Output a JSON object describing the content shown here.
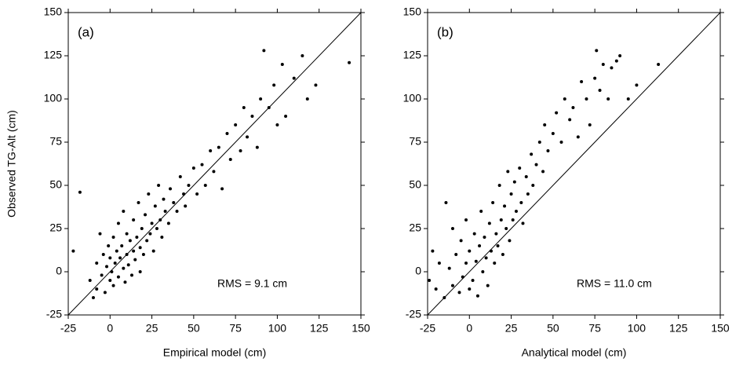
{
  "chart_data": [
    {
      "type": "scatter",
      "title": "(a)",
      "annotation": "RMS = 9.1 cm",
      "x_label": "Empirical model (cm)",
      "y_label": "Observed TG-Alt (cm)",
      "color": "#000000",
      "xlim": [
        -25,
        150
      ],
      "ylim": [
        -25,
        150
      ],
      "xticks": [
        -25,
        0,
        25,
        50,
        75,
        100,
        125,
        150
      ],
      "yticks": [
        -25,
        0,
        25,
        50,
        75,
        100,
        125,
        150
      ],
      "x": [
        -22,
        -18,
        -12,
        -10,
        -8,
        -8,
        -6,
        -5,
        -4,
        -3,
        -2,
        -1,
        0,
        0,
        1,
        2,
        2,
        3,
        4,
        5,
        5,
        6,
        7,
        8,
        8,
        9,
        10,
        10,
        11,
        12,
        13,
        14,
        14,
        15,
        16,
        17,
        18,
        18,
        19,
        20,
        21,
        22,
        23,
        24,
        25,
        26,
        27,
        28,
        29,
        30,
        31,
        32,
        33,
        35,
        36,
        38,
        40,
        42,
        44,
        45,
        47,
        50,
        52,
        55,
        57,
        60,
        62,
        65,
        67,
        70,
        72,
        75,
        78,
        80,
        82,
        85,
        88,
        90,
        92,
        95,
        98,
        100,
        103,
        105,
        110,
        115,
        118,
        123,
        143
      ],
      "values": [
        12,
        46,
        -5,
        -15,
        -10,
        5,
        22,
        -2,
        10,
        -12,
        3,
        15,
        -5,
        8,
        0,
        20,
        -8,
        5,
        12,
        -3,
        28,
        8,
        15,
        2,
        35,
        -6,
        10,
        22,
        4,
        18,
        -2,
        30,
        12,
        7,
        20,
        40,
        14,
        0,
        25,
        10,
        33,
        18,
        45,
        22,
        28,
        12,
        38,
        25,
        50,
        30,
        20,
        42,
        35,
        28,
        48,
        40,
        35,
        55,
        45,
        38,
        50,
        60,
        45,
        62,
        50,
        70,
        58,
        72,
        48,
        80,
        65,
        85,
        70,
        95,
        78,
        90,
        72,
        100,
        128,
        95,
        108,
        85,
        120,
        90,
        112,
        125,
        100,
        108,
        121
      ]
    },
    {
      "type": "scatter",
      "title": "(b)",
      "annotation": "RMS = 11.0 cm",
      "x_label": "Analytical model (cm)",
      "color": "#000000",
      "xlim": [
        -25,
        150
      ],
      "ylim": [
        -25,
        150
      ],
      "xticks": [
        -25,
        0,
        25,
        50,
        75,
        100,
        125,
        150
      ],
      "yticks": [
        -25,
        0,
        25,
        50,
        75,
        100,
        125,
        150
      ],
      "x": [
        -24,
        -22,
        -20,
        -18,
        -15,
        -14,
        -12,
        -10,
        -10,
        -8,
        -6,
        -5,
        -4,
        -2,
        -2,
        0,
        0,
        2,
        3,
        4,
        5,
        6,
        7,
        8,
        9,
        10,
        11,
        12,
        13,
        14,
        15,
        16,
        17,
        18,
        19,
        20,
        21,
        22,
        23,
        24,
        25,
        26,
        27,
        28,
        30,
        31,
        32,
        34,
        35,
        37,
        38,
        40,
        42,
        44,
        45,
        47,
        50,
        52,
        55,
        57,
        60,
        62,
        65,
        67,
        70,
        72,
        75,
        76,
        78,
        80,
        83,
        85,
        88,
        90,
        95,
        100,
        113
      ],
      "values": [
        -5,
        12,
        -10,
        5,
        -15,
        40,
        2,
        -8,
        25,
        10,
        -12,
        18,
        -3,
        30,
        5,
        -10,
        12,
        -5,
        22,
        6,
        -14,
        15,
        35,
        0,
        20,
        8,
        -8,
        28,
        12,
        40,
        5,
        22,
        15,
        50,
        30,
        10,
        38,
        25,
        58,
        18,
        45,
        30,
        52,
        35,
        60,
        40,
        28,
        55,
        45,
        68,
        50,
        62,
        75,
        58,
        85,
        70,
        80,
        92,
        75,
        100,
        88,
        95,
        78,
        110,
        100,
        85,
        112,
        128,
        105,
        120,
        100,
        118,
        122,
        125,
        100,
        108,
        120
      ]
    }
  ]
}
